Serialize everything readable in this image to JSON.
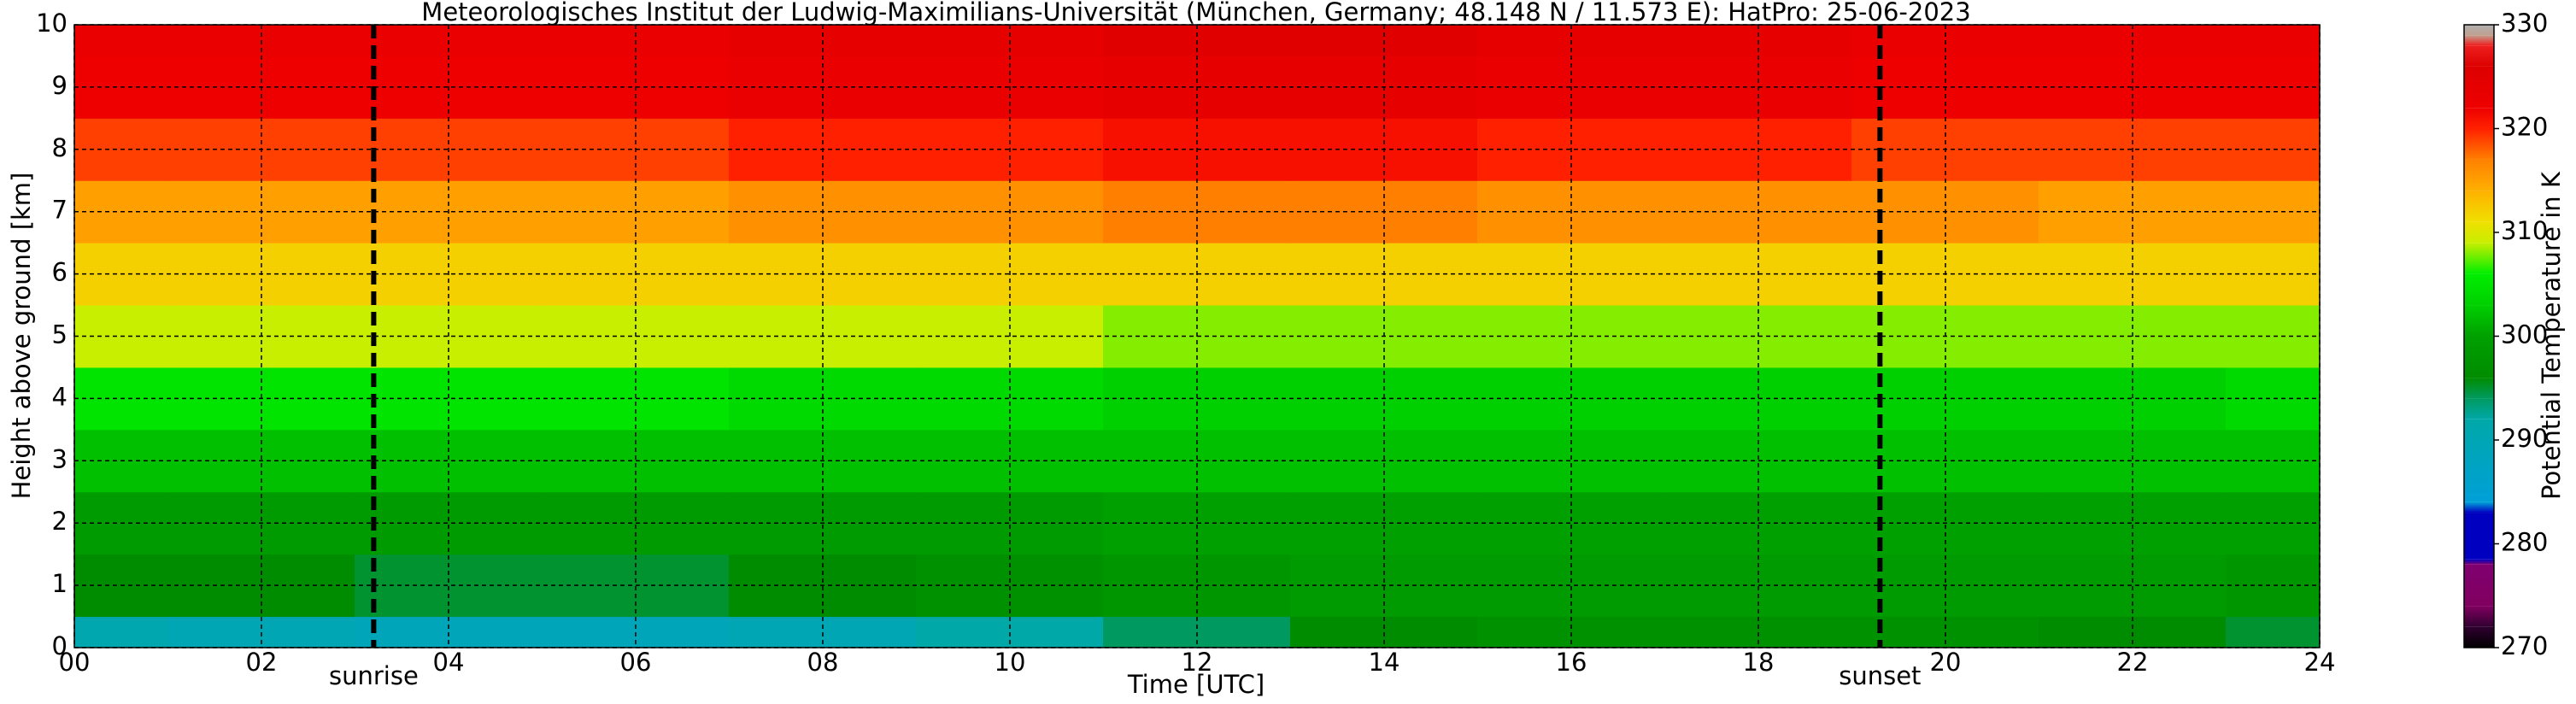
{
  "chart_data": {
    "type": "heatmap",
    "title": "Meteorologisches Institut der Ludwig-Maximilians-Universität (München, Germany; 48.148 N / 11.573 E):    HatPro: 25-06-2023",
    "xlabel": "Time [UTC]",
    "ylabel": "Height above ground [km]",
    "colorbar_label": "Potential Temperature in K",
    "x": [
      0,
      2,
      4,
      6,
      8,
      10,
      12,
      14,
      16,
      18,
      20,
      22,
      24
    ],
    "y": [
      0,
      1,
      2,
      3,
      4,
      5,
      6,
      7,
      8,
      9,
      10
    ],
    "z": [
      [
        291,
        290,
        289,
        289,
        290,
        292,
        294,
        296,
        297,
        297,
        297,
        296,
        295
      ],
      [
        296,
        296,
        295,
        295,
        296,
        297,
        298,
        299,
        299,
        299,
        299,
        299,
        298
      ],
      [
        299,
        299,
        299,
        299,
        299,
        299,
        300,
        300,
        300,
        300,
        300,
        300,
        300
      ],
      [
        302,
        302,
        302,
        302,
        302,
        302,
        302,
        302,
        302,
        302,
        302,
        302,
        302
      ],
      [
        305,
        305,
        305,
        305,
        304,
        304,
        303,
        303,
        303,
        303,
        303,
        303,
        304
      ],
      [
        309,
        309,
        309,
        309,
        309,
        309,
        308,
        308,
        308,
        308,
        308,
        308,
        308
      ],
      [
        312,
        312,
        312,
        312,
        312,
        312,
        312,
        312,
        312,
        312,
        312,
        312,
        312
      ],
      [
        315,
        315,
        315,
        315,
        316,
        316,
        317,
        317,
        316,
        316,
        316,
        315,
        315
      ],
      [
        319,
        319,
        319,
        319,
        320,
        320,
        321,
        321,
        320,
        320,
        319,
        319,
        319
      ],
      [
        322,
        322,
        322,
        322,
        323,
        323,
        324,
        324,
        323,
        323,
        322,
        322,
        322
      ],
      [
        323,
        323,
        323,
        323,
        324,
        324,
        325,
        325,
        324,
        324,
        323,
        323,
        323
      ]
    ],
    "xlim": [
      0,
      24
    ],
    "xticks": [
      {
        "value": 0,
        "label": "00"
      },
      {
        "value": 2,
        "label": "02"
      },
      {
        "value": 4,
        "label": "04"
      },
      {
        "value": 6,
        "label": "06"
      },
      {
        "value": 8,
        "label": "08"
      },
      {
        "value": 10,
        "label": "10"
      },
      {
        "value": 12,
        "label": "12"
      },
      {
        "value": 14,
        "label": "14"
      },
      {
        "value": 16,
        "label": "16"
      },
      {
        "value": 18,
        "label": "18"
      },
      {
        "value": 20,
        "label": "20"
      },
      {
        "value": 22,
        "label": "22"
      },
      {
        "value": 24,
        "label": "24"
      }
    ],
    "ylim": [
      0,
      10
    ],
    "yticks": [
      0,
      1,
      2,
      3,
      4,
      5,
      6,
      7,
      8,
      9,
      10
    ],
    "clim": [
      270,
      330
    ],
    "cticks": [
      270,
      280,
      290,
      300,
      310,
      320,
      330
    ],
    "colorscale": [
      {
        "value": 270,
        "color": "#000000"
      },
      {
        "value": 272,
        "color": "#300030"
      },
      {
        "value": 274,
        "color": "#800060"
      },
      {
        "value": 278,
        "color": "#800070"
      },
      {
        "value": 278.5,
        "color": "#0000c0"
      },
      {
        "value": 283,
        "color": "#0000c0"
      },
      {
        "value": 284,
        "color": "#00a0d8"
      },
      {
        "value": 292,
        "color": "#00a8a8"
      },
      {
        "value": 294,
        "color": "#009a60"
      },
      {
        "value": 296,
        "color": "#008c00"
      },
      {
        "value": 300,
        "color": "#00a000"
      },
      {
        "value": 303,
        "color": "#00d000"
      },
      {
        "value": 306,
        "color": "#00ee00"
      },
      {
        "value": 309,
        "color": "#c8ee00"
      },
      {
        "value": 311,
        "color": "#f0e000"
      },
      {
        "value": 314,
        "color": "#ffb000"
      },
      {
        "value": 317,
        "color": "#ff8000"
      },
      {
        "value": 320,
        "color": "#ff2000"
      },
      {
        "value": 322,
        "color": "#ee0000"
      },
      {
        "value": 326,
        "color": "#dd0000"
      },
      {
        "value": 328,
        "color": "#ee2020"
      },
      {
        "value": 329,
        "color": "#c0a090"
      },
      {
        "value": 330,
        "color": "#b0b0b0"
      }
    ],
    "annotations": [
      {
        "text": "sunrise",
        "x": 3.2
      },
      {
        "text": "sunset",
        "x": 19.3
      }
    ],
    "grid": true
  }
}
